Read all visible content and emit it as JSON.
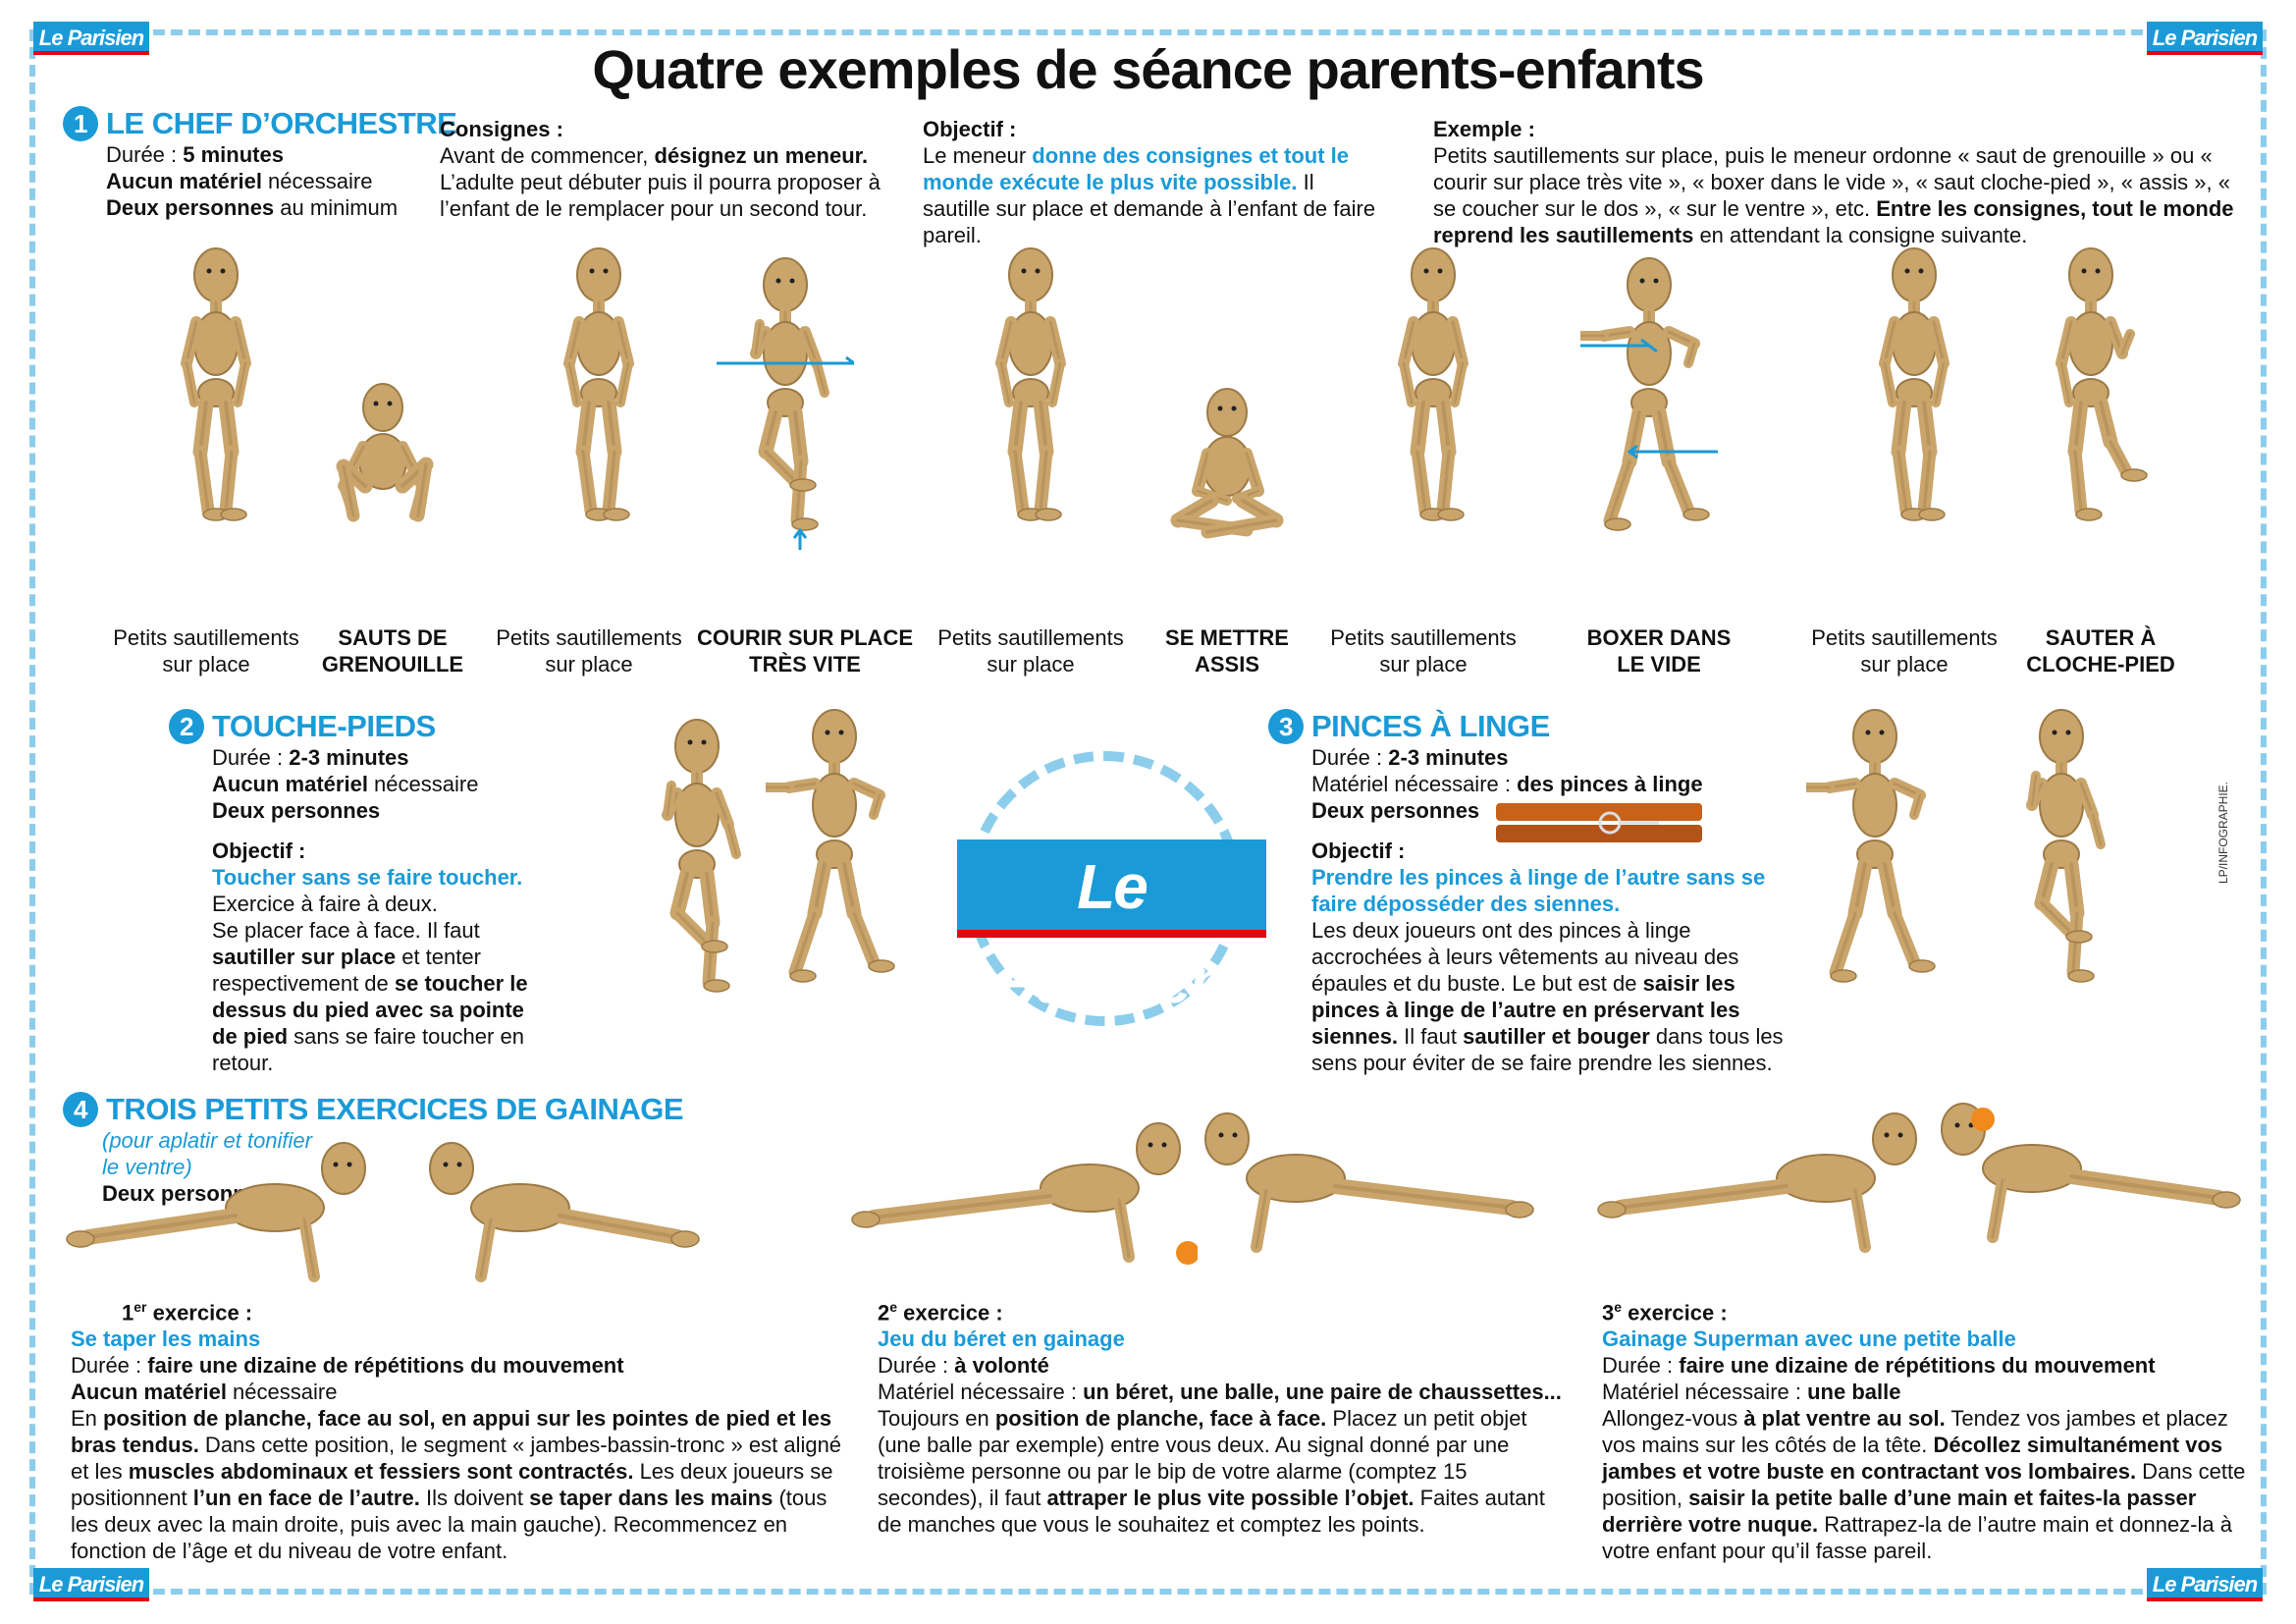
{
  "logo_text": "Le Parisien",
  "title": "Quatre exemples de séance parents-enfants",
  "credit": "LP/INFOGRAPHIE.",
  "s1": {
    "num": "1",
    "heading": "LE CHEF D’ORCHESTRE",
    "duree_label": "Durée : ",
    "duree_value": "5 minutes",
    "materiel_bold": "Aucun matériel",
    "materiel_rest": " nécessaire",
    "personnes_bold": "Deux personnes",
    "personnes_rest": " au minimum",
    "consignes_title": "Consignes :",
    "consignes_1": "Avant de commencer, ",
    "consignes_2": "désignez un meneur.",
    "consignes_3": " L’adulte peut débuter puis il pourra proposer à l’enfant de le remplacer pour un second tour.",
    "objectif_title": "Objectif :",
    "objectif_1": "Le meneur ",
    "objectif_2": "donne des consignes et tout le monde exécute le plus vite possible.",
    "objectif_3": " Il sautille sur place et demande à l’enfant de faire pareil.",
    "exemple_title": "Exemple :",
    "exemple_1": "Petits sautillements sur place, puis le meneur ordonne « saut de grenouille » ou « courir sur place très vite », « boxer dans le vide », « saut cloche-pied », « assis », « se coucher sur le dos », « sur le ventre », etc. ",
    "exemple_2": "Entre les consignes, tout le monde reprend les sautillements",
    "exemple_3": " en attendant la consigne suivante.",
    "captions": [
      {
        "l1": "Petits sautillements",
        "l2": "sur place",
        "bold": false
      },
      {
        "l1": "SAUTS DE",
        "l2": "GRENOUILLE",
        "bold": true
      },
      {
        "l1": "Petits sautillements",
        "l2": "sur place",
        "bold": false
      },
      {
        "l1": "COURIR SUR PLACE",
        "l2": "TRÈS VITE",
        "bold": true
      },
      {
        "l1": "Petits sautillements",
        "l2": "sur place",
        "bold": false
      },
      {
        "l1": "SE METTRE",
        "l2": "ASSIS",
        "bold": true
      },
      {
        "l1": "Petits sautillements",
        "l2": "sur place",
        "bold": false
      },
      {
        "l1": "BOXER DANS",
        "l2": "LE VIDE",
        "bold": true
      },
      {
        "l1": "Petits sautillements",
        "l2": "sur place",
        "bold": false
      },
      {
        "l1": "SAUTER À",
        "l2": "CLOCHE-PIED",
        "bold": true
      }
    ]
  },
  "s2": {
    "num": "2",
    "heading": "TOUCHE-PIEDS",
    "duree_label": "Durée : ",
    "duree_value": "2-3 minutes",
    "materiel_bold": "Aucun matériel",
    "materiel_rest": " nécessaire",
    "personnes": "Deux personnes",
    "objectif_title": "Objectif :",
    "objectif_blue": "Toucher sans se faire toucher.",
    "t1": "Exercice à faire à deux.",
    "t2": "Se placer face à face. Il faut ",
    "t3": "sautiller sur place",
    "t4": " et tenter respectivement de ",
    "t5": "se toucher le dessus du pied avec sa pointe de pied",
    "t6": " sans se faire toucher en retour."
  },
  "s3": {
    "num": "3",
    "heading": "PINCES À LINGE",
    "duree_label": "Durée : ",
    "duree_value": "2-3 minutes",
    "materiel_label": "Matériel nécessaire : ",
    "materiel_value": "des pinces à linge",
    "personnes": "Deux personnes",
    "objectif_title": "Objectif :",
    "objectif_blue": "Prendre les pinces à linge de l’autre sans se faire déposséder des siennes.",
    "t1": "Les deux joueurs ont des pinces à linge accrochées à leurs vêtements au niveau des épaules et du buste. Le but est de ",
    "t2": "saisir les pinces à linge de l’autre en préservant les siennes.",
    "t3": " Il faut ",
    "t4": "sautiller et bouger",
    "t5": " dans tous les sens pour éviter de se faire prendre les siennes."
  },
  "s4": {
    "num": "4",
    "heading": "TROIS PETITS EXERCICES DE GAINAGE",
    "subtitle": "(pour aplatir et tonifier le ventre)",
    "personnes": "Deux personnes",
    "ex1": {
      "title_num": "1",
      "title_sup": "er",
      "title_rest": " exercice :",
      "name": "Se taper les mains",
      "duree_label": "Durée : ",
      "duree_value": "faire une dizaine de répétitions du mouvement",
      "materiel_bold": "Aucun matériel",
      "materiel_rest": " nécessaire",
      "t1": "En ",
      "t2": "position de planche, face au sol, en appui sur les pointes de pied et les bras tendus.",
      "t3": " Dans cette position, le segment « jambes-bassin-tronc » est aligné et les ",
      "t4": "muscles abdominaux et fessiers sont contractés.",
      "t5": " Les deux joueurs se positionnent ",
      "t6": "l’un en face de l’autre.",
      "t7": " Ils doivent ",
      "t8": "se taper dans les mains",
      "t9": " (tous les deux avec la main droite, puis avec la main gauche). Recommencez en fonction de l’âge et du niveau de votre enfant."
    },
    "ex2": {
      "title_num": "2",
      "title_sup": "e",
      "title_rest": " exercice :",
      "name": "Jeu du béret en gainage",
      "duree_label": "Durée : ",
      "duree_value": "à volonté",
      "materiel_label": "Matériel nécessaire : ",
      "materiel_value": "un béret, une balle, une paire de chaussettes...",
      "t1": "Toujours en ",
      "t2": "position de planche, face à face.",
      "t3": " Placez un petit objet (une balle par exemple) entre vous deux. Au signal donné par une troisième personne ou par le bip de votre alarme (comptez 15 secondes), il faut ",
      "t4": "attraper le plus vite possible l’objet.",
      "t5": " Faites autant de manches que vous le souhaitez et comptez les points."
    },
    "ex3": {
      "title_num": "3",
      "title_sup": "e",
      "title_rest": " exercice :",
      "name": "Gainage Superman avec une petite balle",
      "duree_label": "Durée : ",
      "duree_value": "faire une dizaine de répétitions du mouvement",
      "materiel_label": "Matériel nécessaire : ",
      "materiel_value": "une balle",
      "t1": "Allongez-vous ",
      "t2": "à plat ventre au sol.",
      "t3": " Tendez vos jambes et placez vos mains sur les côtés de la tête. ",
      "t4": "Décollez simultanément vos jambes et votre buste en contractant vos lombaires.",
      "t5": " Dans cette position, ",
      "t6": "saisir la petite balle d’une main et faites-la passer derrière votre nuque.",
      "t7": " Rattrapez-la de l’autre main et donnez-la à votre enfant pour qu’il fasse pareil."
    }
  },
  "colors": {
    "accent": "#1a9ad7",
    "frame": "#8ccdec",
    "wood": "#c9a56b",
    "red": "#e30613",
    "ball": "#f08a1c"
  }
}
